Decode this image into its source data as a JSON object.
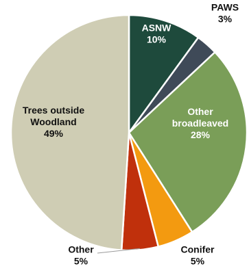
{
  "chart_data": {
    "type": "pie",
    "title": "",
    "slices": [
      {
        "name": "ASNW",
        "value": 10,
        "display": "10%",
        "color": "#1e4a3c",
        "label_color": "#ffffff"
      },
      {
        "name": "PAWS",
        "value": 3,
        "display": "3%",
        "color": "#3f4a58",
        "label_color": "#111111"
      },
      {
        "name": "Other broadleaved",
        "name_lines": [
          "Other",
          "broadleaved"
        ],
        "value": 28,
        "display": "28%",
        "color": "#7a9e58",
        "label_color": "#ffffff"
      },
      {
        "name": "Conifer",
        "value": 5,
        "display": "5%",
        "color": "#f39a10",
        "label_color": "#111111"
      },
      {
        "name": "Other",
        "value": 5,
        "display": "5%",
        "color": "#c0300c",
        "label_color": "#111111"
      },
      {
        "name": "Trees outside Woodland",
        "name_lines": [
          "Trees outside",
          "Woodland"
        ],
        "value": 49,
        "display": "49%",
        "color": "#cfcdb4",
        "label_color": "#111111"
      }
    ],
    "start_angle_deg": 0,
    "direction": "clockwise",
    "legend": "none"
  }
}
